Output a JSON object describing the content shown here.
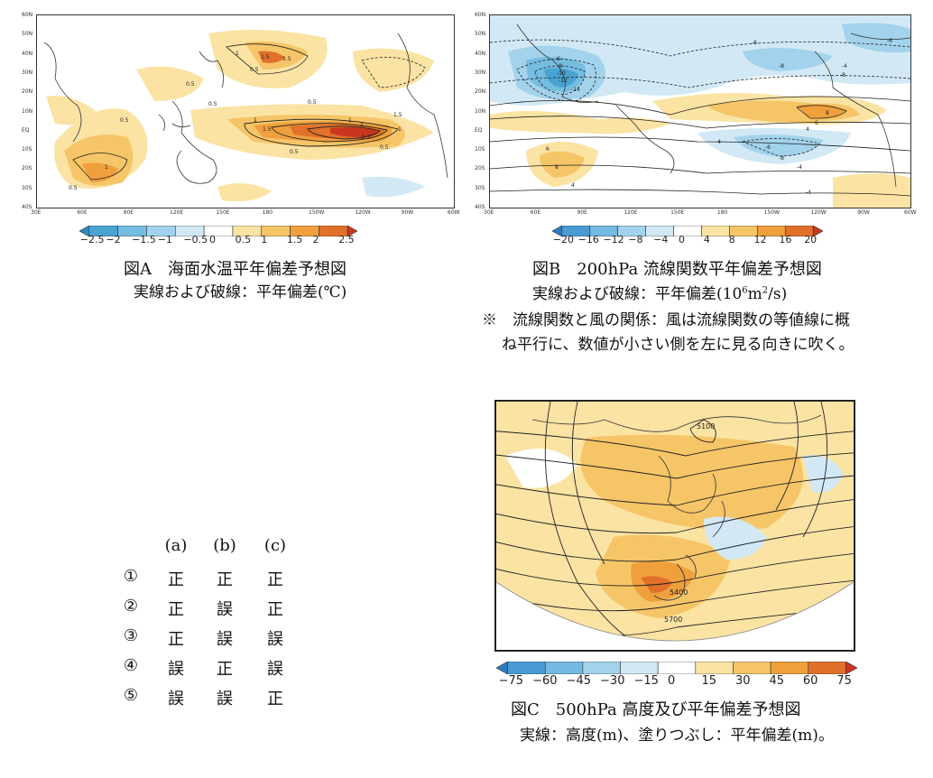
{
  "figA": {
    "lat_labels": [
      "60N",
      "50N",
      "40N",
      "30N",
      "20N",
      "10N",
      "EQ",
      "10S",
      "20S",
      "30S",
      "40S"
    ],
    "lon_labels": [
      "30E",
      "60E",
      "90E",
      "120E",
      "150E",
      "180",
      "150W",
      "120W",
      "90W",
      "60W"
    ],
    "contour_labels": [
      "1",
      "1.5",
      "1.5",
      "0.5",
      "0.5",
      "0.5",
      "1",
      "1.5",
      "1",
      "2",
      "2.5",
      "1",
      "0.5",
      "0.5",
      "0.5",
      "1",
      "1.5",
      "0.5",
      "0.5"
    ],
    "colorbar": [
      "−2.5",
      "−2",
      "−1.5",
      "−1",
      "−0.5",
      "0",
      "0.5",
      "1",
      "1.5",
      "2",
      "2.5"
    ],
    "colors": [
      "#2b8cbe",
      "#4aa3d1",
      "#74bde0",
      "#a3d3ec",
      "#d2e9f5",
      "#ffffff",
      "#fbe3a4",
      "#f6c567",
      "#efa03d",
      "#e0702a",
      "#c9361f"
    ],
    "caption_title": "図A　海面水温平年偏差予想図",
    "caption_sub": "実線および破線：平年偏差(℃)"
  },
  "figB": {
    "lat_labels": [
      "60N",
      "50N",
      "40N",
      "30N",
      "20N",
      "10N",
      "EQ",
      "10S",
      "20S",
      "30S",
      "40S"
    ],
    "lon_labels": [
      "30E",
      "60E",
      "90E",
      "120E",
      "150E",
      "180",
      "150W",
      "120W",
      "90W",
      "60W"
    ],
    "contour_labels": [
      "-6",
      "-8",
      "-10",
      "-12",
      "-14",
      "-6",
      "-8",
      "-6",
      "-4",
      "-8",
      "8",
      "6",
      "4",
      "-4",
      "-6",
      "-8",
      "-4",
      "8",
      "6",
      "4",
      "-4"
    ],
    "colorbar": [
      "−20",
      "−16",
      "−12",
      "−8",
      "−4",
      "0",
      "4",
      "8",
      "12",
      "16",
      "20"
    ],
    "colors": [
      "#2b7bc0",
      "#4a9bd3",
      "#74b9e2",
      "#a3d3ec",
      "#d2e9f5",
      "#ffffff",
      "#fbe3a4",
      "#f6c567",
      "#efa03d",
      "#e0702a",
      "#c9361f"
    ],
    "caption_title": "図B　200hPa 流線関数平年偏差予想図",
    "caption_sub_pre": "実線および破線：平年偏差(10",
    "caption_sub_sup1": "6",
    "caption_sub_mid": "m",
    "caption_sub_sup2": "2",
    "caption_sub_post": "/s)",
    "note_line1": "※　流線関数と風の関係：風は流線関数の等値線に概",
    "note_line2": "ね平行に、数値が小さい側を左に見る向きに吹く。"
  },
  "figC": {
    "contour_labels": [
      "5100",
      "5400",
      "5700"
    ],
    "colorbar": [
      "−75",
      "−60",
      "−45",
      "−30",
      "−15",
      "0",
      "15",
      "30",
      "45",
      "60",
      "75"
    ],
    "colors": [
      "#2b7bc0",
      "#4a9bd3",
      "#74b9e2",
      "#a3d3ec",
      "#d2e9f5",
      "#ffffff",
      "#fbe3a4",
      "#f6c567",
      "#efa03d",
      "#e0702a",
      "#c9361f"
    ],
    "caption_title": "図C　500hPa 高度及び平年偏差予想図",
    "caption_sub": "実線：高度(m)、塗りつぶし：平年偏差(m)。"
  },
  "answer_table": {
    "headers": [
      "(a)",
      "(b)",
      "(c)"
    ],
    "rows": [
      {
        "num": "①",
        "a": "正",
        "b": "正",
        "c": "正"
      },
      {
        "num": "②",
        "a": "正",
        "b": "誤",
        "c": "正"
      },
      {
        "num": "③",
        "a": "正",
        "b": "誤",
        "c": "誤"
      },
      {
        "num": "④",
        "a": "誤",
        "b": "正",
        "c": "誤"
      },
      {
        "num": "⑤",
        "a": "誤",
        "b": "誤",
        "c": "正"
      }
    ]
  }
}
